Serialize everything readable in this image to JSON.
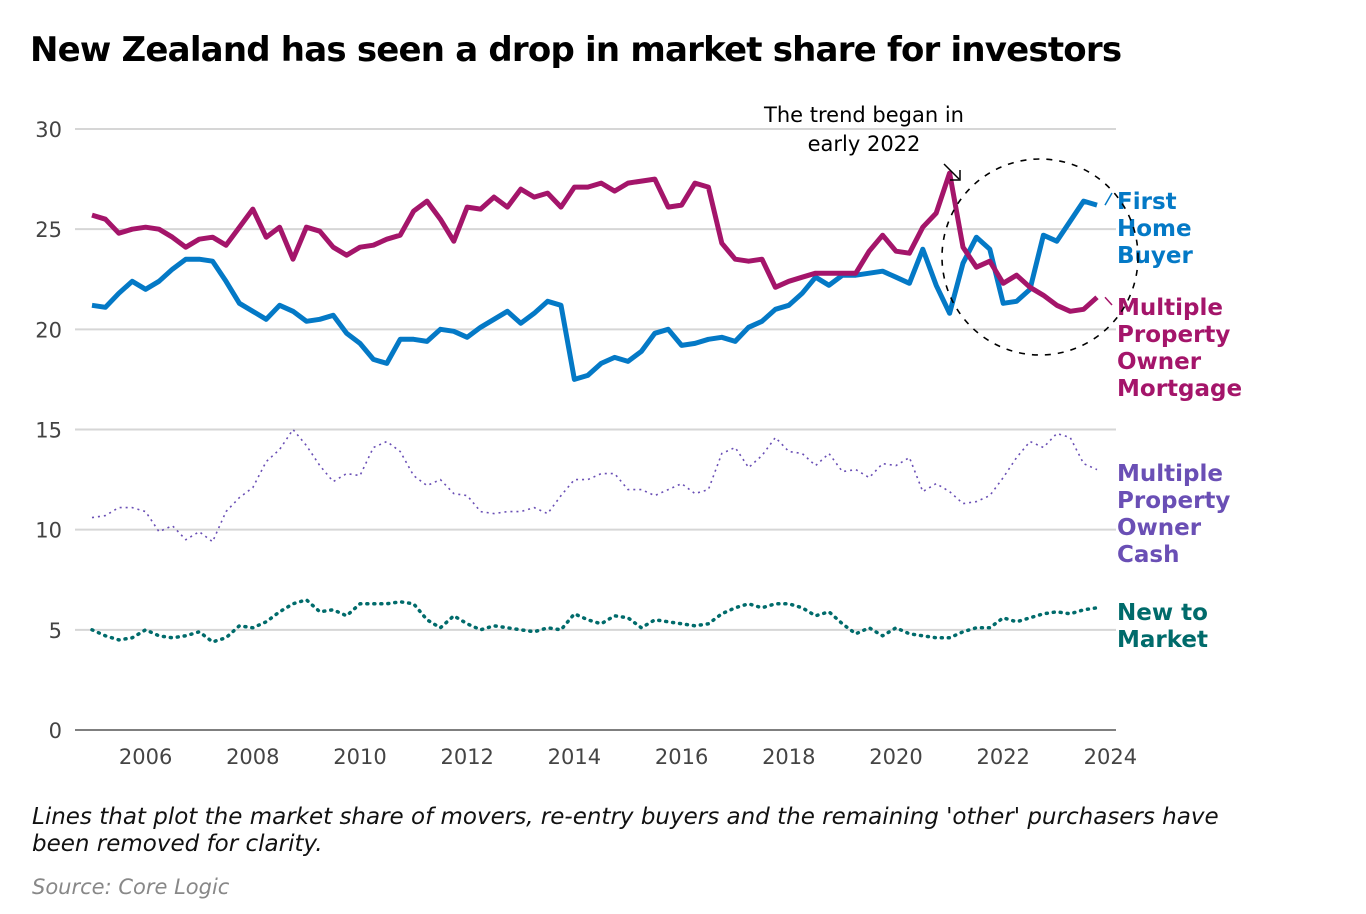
{
  "chart_data": {
    "type": "line",
    "title": "New Zealand has seen a drop in market share for investors",
    "xlabel": "",
    "ylabel": "",
    "xlim": [
      2004.7,
      2024
    ],
    "ylim": [
      0,
      30
    ],
    "x_start": 2005.0,
    "x_step": 0.25,
    "yticks": [
      "0",
      "5",
      "10",
      "15",
      "20",
      "25",
      "30"
    ],
    "xticks": [
      "2006",
      "2008",
      "2010",
      "2012",
      "2014",
      "2016",
      "2018",
      "2020",
      "2022",
      "2024"
    ],
    "grid": true,
    "legend_placement": "right (direct labels)",
    "series": [
      {
        "name": "First Home Buyer",
        "label_lines": [
          "First",
          "Home",
          "Buyer"
        ],
        "color": "#0479c6",
        "style": "solid",
        "values": [
          21.2,
          21.1,
          21.8,
          22.4,
          22.0,
          22.4,
          23.0,
          23.5,
          23.5,
          23.4,
          22.4,
          21.3,
          20.9,
          20.5,
          21.2,
          20.9,
          20.4,
          20.5,
          20.7,
          19.8,
          19.3,
          18.5,
          18.3,
          19.5,
          19.5,
          19.4,
          20.0,
          19.9,
          19.6,
          20.1,
          20.5,
          20.9,
          20.3,
          20.8,
          21.4,
          21.2,
          17.5,
          17.7,
          18.3,
          18.6,
          18.4,
          18.9,
          19.8,
          20.0,
          19.2,
          19.3,
          19.5,
          19.6,
          19.4,
          20.1,
          20.4,
          21.0,
          21.2,
          21.8,
          22.6,
          22.2,
          22.7,
          22.7,
          22.8,
          22.9,
          22.6,
          22.3,
          24.0,
          22.2,
          20.8,
          23.3,
          24.6,
          24.0,
          21.3,
          21.4,
          22.0,
          24.7,
          24.4,
          25.4,
          26.4,
          26.2
        ]
      },
      {
        "name": "Multiple Property Owner Mortgage",
        "label_lines": [
          "Multiple",
          "Property",
          "Owner",
          "Mortgage"
        ],
        "color": "#a4156a",
        "style": "solid",
        "values": [
          25.7,
          25.5,
          24.8,
          25.0,
          25.1,
          25.0,
          24.6,
          24.1,
          24.5,
          24.6,
          24.2,
          25.1,
          26.0,
          24.6,
          25.1,
          23.5,
          25.1,
          24.9,
          24.1,
          23.7,
          24.1,
          24.2,
          24.5,
          24.7,
          25.9,
          26.4,
          25.5,
          24.4,
          26.1,
          26.0,
          26.6,
          26.1,
          27.0,
          26.6,
          26.8,
          26.1,
          27.1,
          27.1,
          27.3,
          26.9,
          27.3,
          27.4,
          27.5,
          26.1,
          26.2,
          27.3,
          27.1,
          24.3,
          23.5,
          23.4,
          23.5,
          22.1,
          22.4,
          22.6,
          22.8,
          22.8,
          22.8,
          22.8,
          23.9,
          24.7,
          23.9,
          23.8,
          25.1,
          25.8,
          27.8,
          24.1,
          23.1,
          23.4,
          22.3,
          22.7,
          22.1,
          21.7,
          21.2,
          20.9,
          21.0,
          21.6
        ]
      },
      {
        "name": "Multiple Property Owner Cash",
        "label_lines": [
          "Multiple",
          "Property",
          "Owner",
          "Cash"
        ],
        "color": "#6a4fb5",
        "style": "dotted-thin",
        "values": [
          10.6,
          10.7,
          11.1,
          11.1,
          10.9,
          9.9,
          10.2,
          9.5,
          9.9,
          9.4,
          10.9,
          11.6,
          12.1,
          13.4,
          14.0,
          15.0,
          14.2,
          13.2,
          12.4,
          12.8,
          12.7,
          14.1,
          14.4,
          13.9,
          12.7,
          12.2,
          12.5,
          11.8,
          11.7,
          10.9,
          10.8,
          10.9,
          10.9,
          11.1,
          10.8,
          11.7,
          12.5,
          12.5,
          12.8,
          12.8,
          12.0,
          12.0,
          11.7,
          12.0,
          12.3,
          11.8,
          12.0,
          13.8,
          14.1,
          13.1,
          13.7,
          14.6,
          13.9,
          13.8,
          13.2,
          13.8,
          12.9,
          13.0,
          12.6,
          13.3,
          13.2,
          13.6,
          11.9,
          12.3,
          11.9,
          11.3,
          11.4,
          11.7,
          12.6,
          13.6,
          14.4,
          14.1,
          14.8,
          14.6,
          13.3,
          13.0
        ]
      },
      {
        "name": "New to Market",
        "label_lines": [
          "New to",
          "Market"
        ],
        "color": "#006b6b",
        "style": "dotted-thick",
        "values": [
          5.0,
          4.7,
          4.5,
          4.6,
          5.0,
          4.7,
          4.6,
          4.7,
          4.9,
          4.4,
          4.6,
          5.2,
          5.1,
          5.4,
          5.9,
          6.3,
          6.5,
          5.9,
          6.0,
          5.7,
          6.3,
          6.3,
          6.3,
          6.4,
          6.3,
          5.5,
          5.1,
          5.7,
          5.3,
          5.0,
          5.2,
          5.1,
          5.0,
          4.9,
          5.1,
          5.0,
          5.8,
          5.5,
          5.3,
          5.7,
          5.6,
          5.1,
          5.5,
          5.4,
          5.3,
          5.2,
          5.3,
          5.8,
          6.1,
          6.3,
          6.1,
          6.3,
          6.3,
          6.1,
          5.7,
          5.9,
          5.3,
          4.8,
          5.1,
          4.7,
          5.1,
          4.8,
          4.7,
          4.6,
          4.6,
          4.9,
          5.1,
          5.1,
          5.6,
          5.4,
          5.6,
          5.8,
          5.9,
          5.8,
          6.0,
          6.1
        ]
      }
    ],
    "annotations": [
      {
        "text_lines": [
          "The trend began in",
          "early 2022"
        ],
        "highlight": "dashed circle around 2021-2024"
      }
    ]
  },
  "footer": {
    "note": "Lines that plot the market share of movers, re-entry buyers and the remaining 'other' purchasers have been removed for clarity.",
    "source": "Source: Core Logic"
  }
}
